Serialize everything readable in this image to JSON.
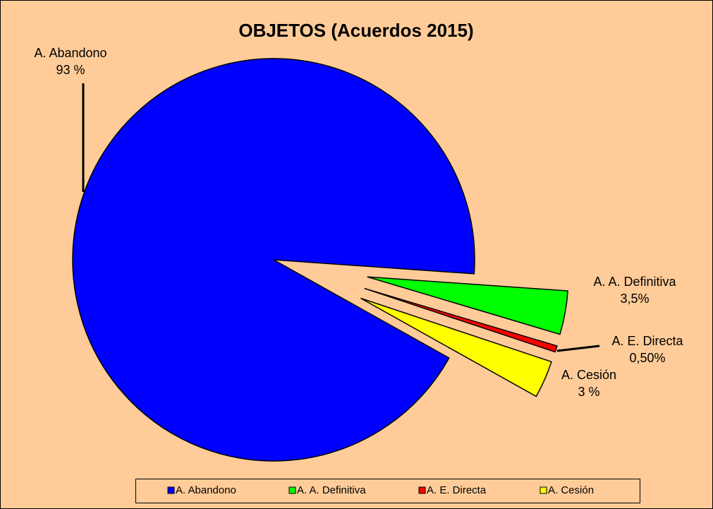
{
  "chart_data": {
    "type": "pie",
    "title": "OBJETOS (Acuerdos 2015)",
    "categories": [
      "A. Abandono",
      "A. A. Definitiva",
      "A. E. Directa",
      "A. Cesión"
    ],
    "values": [
      93,
      3.5,
      0.5,
      3
    ],
    "value_labels": [
      "93 %",
      "3,5%",
      "0,50%",
      "3 %"
    ],
    "colors": [
      "#0000ff",
      "#00ff00",
      "#ff0000",
      "#ffff00"
    ],
    "legend": "bottom"
  }
}
